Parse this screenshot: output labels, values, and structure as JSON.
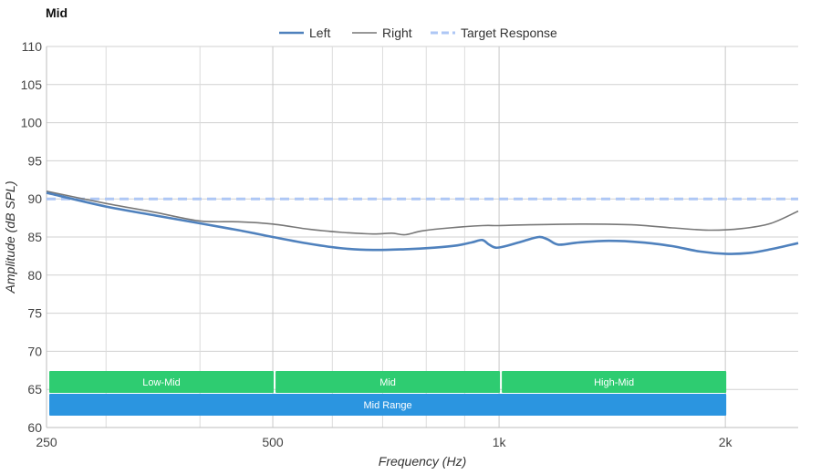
{
  "chart_data": {
    "type": "line",
    "title": "Mid",
    "xlabel": "Frequency (Hz)",
    "ylabel": "Amplitude (dB SPL)",
    "x_scale": "log",
    "xlim": [
      250,
      2500
    ],
    "ylim": [
      60,
      110
    ],
    "x_ticks": [
      {
        "value": 250,
        "label": "250"
      },
      {
        "value": 500,
        "label": "500"
      },
      {
        "value": 1000,
        "label": "1k"
      },
      {
        "value": 2000,
        "label": "2k"
      }
    ],
    "x_minor_gridlines": [
      300,
      400,
      600,
      700,
      800,
      900
    ],
    "y_ticks": [
      60,
      65,
      70,
      75,
      80,
      85,
      90,
      95,
      100,
      105,
      110
    ],
    "grid": true,
    "legend_position": "top-center",
    "series": [
      {
        "name": "Left",
        "color": "#4f81bd",
        "style": "solid-thick",
        "points": [
          [
            250,
            90.8
          ],
          [
            300,
            89.0
          ],
          [
            350,
            87.8
          ],
          [
            400,
            86.8
          ],
          [
            450,
            85.9
          ],
          [
            500,
            85.0
          ],
          [
            560,
            84.1
          ],
          [
            620,
            83.5
          ],
          [
            680,
            83.3
          ],
          [
            750,
            83.4
          ],
          [
            820,
            83.6
          ],
          [
            880,
            83.9
          ],
          [
            920,
            84.3
          ],
          [
            950,
            84.6
          ],
          [
            970,
            84.0
          ],
          [
            990,
            83.6
          ],
          [
            1020,
            83.8
          ],
          [
            1080,
            84.5
          ],
          [
            1130,
            85.0
          ],
          [
            1160,
            84.7
          ],
          [
            1200,
            84.0
          ],
          [
            1280,
            84.3
          ],
          [
            1400,
            84.5
          ],
          [
            1550,
            84.3
          ],
          [
            1700,
            83.8
          ],
          [
            1850,
            83.1
          ],
          [
            2000,
            82.8
          ],
          [
            2150,
            82.9
          ],
          [
            2300,
            83.4
          ],
          [
            2500,
            84.2
          ]
        ]
      },
      {
        "name": "Right",
        "color": "#777777",
        "style": "solid-thin",
        "points": [
          [
            250,
            91.0
          ],
          [
            300,
            89.4
          ],
          [
            350,
            88.2
          ],
          [
            400,
            87.1
          ],
          [
            450,
            87.0
          ],
          [
            500,
            86.7
          ],
          [
            560,
            86.0
          ],
          [
            620,
            85.6
          ],
          [
            680,
            85.4
          ],
          [
            720,
            85.5
          ],
          [
            750,
            85.3
          ],
          [
            790,
            85.8
          ],
          [
            860,
            86.2
          ],
          [
            950,
            86.5
          ],
          [
            1000,
            86.5
          ],
          [
            1100,
            86.6
          ],
          [
            1300,
            86.7
          ],
          [
            1500,
            86.6
          ],
          [
            1700,
            86.2
          ],
          [
            1900,
            85.9
          ],
          [
            2100,
            86.1
          ],
          [
            2300,
            86.8
          ],
          [
            2500,
            88.4
          ]
        ]
      },
      {
        "name": "Target Response",
        "color": "#aec7f5",
        "style": "dashed",
        "points": [
          [
            250,
            90.0
          ],
          [
            2500,
            90.0
          ]
        ]
      }
    ],
    "bands": [
      {
        "label": "Low-Mid",
        "start": 250,
        "end": 500,
        "row": 1,
        "color": "#2ecc71"
      },
      {
        "label": "Mid",
        "start": 500,
        "end": 1000,
        "row": 1,
        "color": "#2ecc71"
      },
      {
        "label": "High-Mid",
        "start": 1000,
        "end": 2000,
        "row": 1,
        "color": "#2ecc71"
      },
      {
        "label": "Mid Range",
        "start": 250,
        "end": 2000,
        "row": 2,
        "color": "#2b95e0"
      }
    ]
  }
}
